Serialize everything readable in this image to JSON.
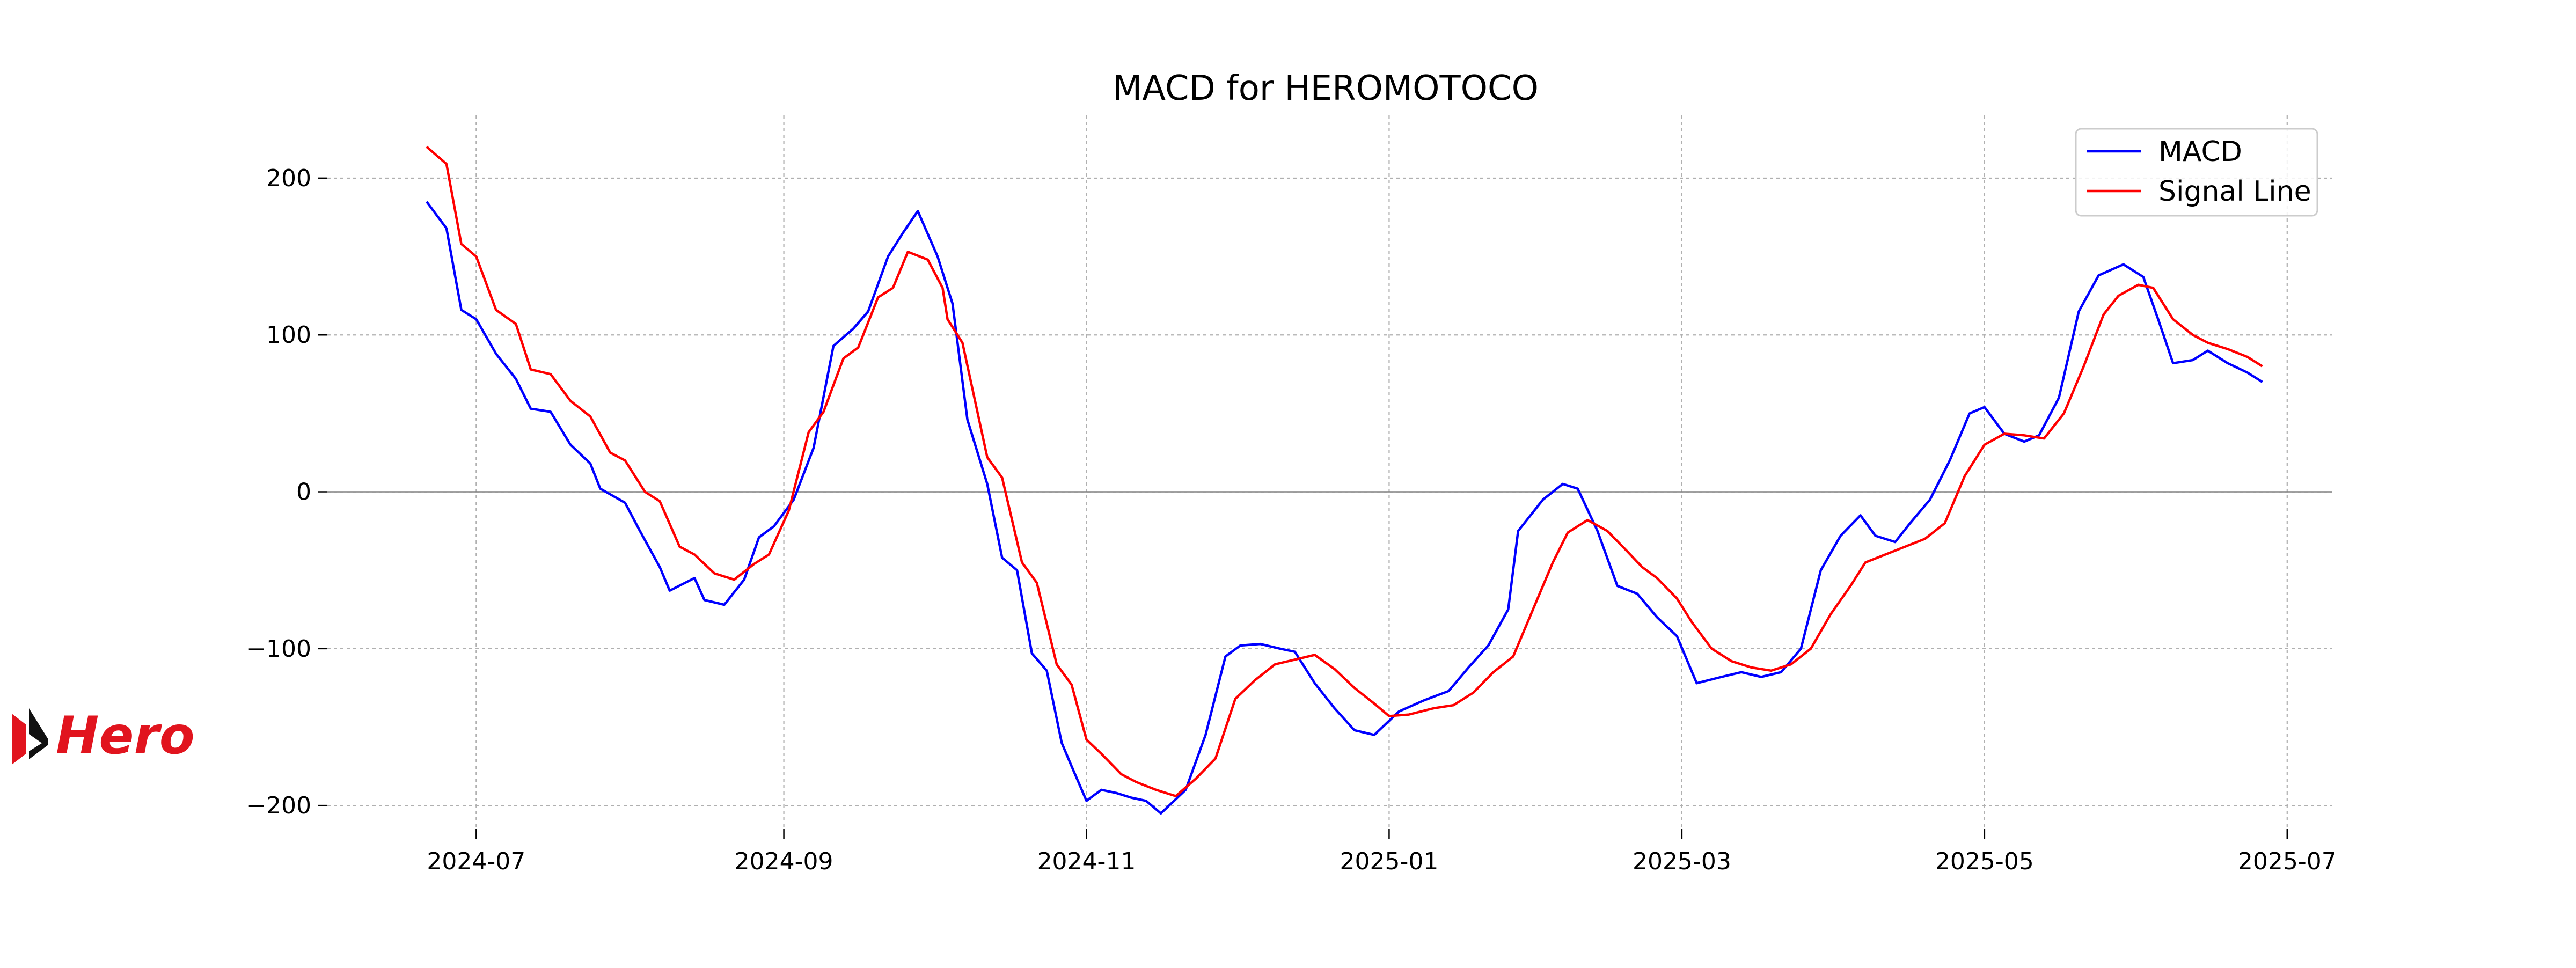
{
  "logo": {
    "text": "Hero",
    "color": "#e1141e"
  },
  "chart_data": {
    "type": "line",
    "title": "MACD for HEROMOTOCO",
    "xlabel": "",
    "ylabel": "",
    "x_axis_type": "date",
    "xlim": [
      "2024-06-01",
      "2025-07-10"
    ],
    "ylim": [
      -215,
      240
    ],
    "y_ticks": [
      200,
      100,
      0,
      -100,
      -200
    ],
    "y_tick_labels": [
      "200",
      "100",
      "0",
      "−100",
      "−200"
    ],
    "x_ticks": [
      "2024-07-01",
      "2024-09-01",
      "2024-11-01",
      "2025-01-01",
      "2025-03-01",
      "2025-05-01",
      "2025-07-01"
    ],
    "x_tick_labels": [
      "2024-07",
      "2024-09",
      "2024-11",
      "2025-01",
      "2025-03",
      "2025-05",
      "2025-07"
    ],
    "grid": true,
    "zero_line": true,
    "legend_position": "top-right",
    "series": [
      {
        "name": "MACD",
        "color": "#0000ff",
        "points": [
          [
            "2024-06-21",
            185
          ],
          [
            "2024-06-25",
            168
          ],
          [
            "2024-06-28",
            116
          ],
          [
            "2024-07-01",
            110
          ],
          [
            "2024-07-05",
            88
          ],
          [
            "2024-07-09",
            72
          ],
          [
            "2024-07-12",
            53
          ],
          [
            "2024-07-16",
            51
          ],
          [
            "2024-07-20",
            30
          ],
          [
            "2024-07-24",
            18
          ],
          [
            "2024-07-26",
            2
          ],
          [
            "2024-07-31",
            -7
          ],
          [
            "2024-08-03",
            -25
          ],
          [
            "2024-08-07",
            -48
          ],
          [
            "2024-08-09",
            -63
          ],
          [
            "2024-08-14",
            -55
          ],
          [
            "2024-08-16",
            -69
          ],
          [
            "2024-08-20",
            -72
          ],
          [
            "2024-08-24",
            -56
          ],
          [
            "2024-08-27",
            -29
          ],
          [
            "2024-08-30",
            -22
          ],
          [
            "2024-09-03",
            -5
          ],
          [
            "2024-09-07",
            28
          ],
          [
            "2024-09-11",
            93
          ],
          [
            "2024-09-15",
            104
          ],
          [
            "2024-09-18",
            115
          ],
          [
            "2024-09-22",
            150
          ],
          [
            "2024-09-25",
            165
          ],
          [
            "2024-09-28",
            179
          ],
          [
            "2024-10-02",
            150
          ],
          [
            "2024-10-05",
            120
          ],
          [
            "2024-10-08",
            46
          ],
          [
            "2024-10-12",
            5
          ],
          [
            "2024-10-15",
            -42
          ],
          [
            "2024-10-18",
            -50
          ],
          [
            "2024-10-21",
            -103
          ],
          [
            "2024-10-24",
            -114
          ],
          [
            "2024-10-27",
            -160
          ],
          [
            "2024-10-29",
            -175
          ],
          [
            "2024-11-01",
            -197
          ],
          [
            "2024-11-04",
            -190
          ],
          [
            "2024-11-07",
            -192
          ],
          [
            "2024-11-10",
            -195
          ],
          [
            "2024-11-13",
            -197
          ],
          [
            "2024-11-16",
            -205
          ],
          [
            "2024-11-21",
            -190
          ],
          [
            "2024-11-25",
            -155
          ],
          [
            "2024-11-29",
            -105
          ],
          [
            "2024-12-02",
            -98
          ],
          [
            "2024-12-06",
            -97
          ],
          [
            "2024-12-10",
            -100
          ],
          [
            "2024-12-13",
            -102
          ],
          [
            "2024-12-17",
            -122
          ],
          [
            "2024-12-21",
            -138
          ],
          [
            "2024-12-25",
            -152
          ],
          [
            "2024-12-29",
            -155
          ],
          [
            "2025-01-03",
            -140
          ],
          [
            "2025-01-08",
            -133
          ],
          [
            "2025-01-13",
            -127
          ],
          [
            "2025-01-17",
            -112
          ],
          [
            "2025-01-21",
            -98
          ],
          [
            "2025-01-25",
            -75
          ],
          [
            "2025-01-27",
            -25
          ],
          [
            "2025-02-01",
            -5
          ],
          [
            "2025-02-05",
            5
          ],
          [
            "2025-02-08",
            2
          ],
          [
            "2025-02-12",
            -25
          ],
          [
            "2025-02-16",
            -60
          ],
          [
            "2025-02-20",
            -65
          ],
          [
            "2025-02-24",
            -80
          ],
          [
            "2025-02-28",
            -92
          ],
          [
            "2025-03-04",
            -122
          ],
          [
            "2025-03-09",
            -118
          ],
          [
            "2025-03-13",
            -115
          ],
          [
            "2025-03-17",
            -118
          ],
          [
            "2025-03-21",
            -115
          ],
          [
            "2025-03-25",
            -100
          ],
          [
            "2025-03-29",
            -50
          ],
          [
            "2025-04-02",
            -28
          ],
          [
            "2025-04-06",
            -15
          ],
          [
            "2025-04-09",
            -28
          ],
          [
            "2025-04-13",
            -32
          ],
          [
            "2025-04-16",
            -20
          ],
          [
            "2025-04-20",
            -5
          ],
          [
            "2025-04-24",
            20
          ],
          [
            "2025-04-28",
            50
          ],
          [
            "2025-05-01",
            54
          ],
          [
            "2025-05-05",
            37
          ],
          [
            "2025-05-09",
            32
          ],
          [
            "2025-05-12",
            36
          ],
          [
            "2025-05-16",
            60
          ],
          [
            "2025-05-20",
            115
          ],
          [
            "2025-05-24",
            138
          ],
          [
            "2025-05-29",
            145
          ],
          [
            "2025-06-02",
            137
          ],
          [
            "2025-06-05",
            110
          ],
          [
            "2025-06-08",
            82
          ],
          [
            "2025-06-12",
            84
          ],
          [
            "2025-06-15",
            90
          ],
          [
            "2025-06-19",
            82
          ],
          [
            "2025-06-23",
            76
          ],
          [
            "2025-06-26",
            70
          ]
        ]
      },
      {
        "name": "Signal Line",
        "color": "#ff0000",
        "points": [
          [
            "2024-06-21",
            220
          ],
          [
            "2024-06-25",
            209
          ],
          [
            "2024-06-28",
            158
          ],
          [
            "2024-07-01",
            150
          ],
          [
            "2024-07-05",
            116
          ],
          [
            "2024-07-09",
            107
          ],
          [
            "2024-07-12",
            78
          ],
          [
            "2024-07-16",
            75
          ],
          [
            "2024-07-20",
            58
          ],
          [
            "2024-07-24",
            48
          ],
          [
            "2024-07-28",
            25
          ],
          [
            "2024-07-31",
            20
          ],
          [
            "2024-08-04",
            0
          ],
          [
            "2024-08-07",
            -6
          ],
          [
            "2024-08-11",
            -35
          ],
          [
            "2024-08-14",
            -40
          ],
          [
            "2024-08-18",
            -52
          ],
          [
            "2024-08-22",
            -56
          ],
          [
            "2024-08-26",
            -46
          ],
          [
            "2024-08-29",
            -40
          ],
          [
            "2024-09-02",
            -12
          ],
          [
            "2024-09-06",
            38
          ],
          [
            "2024-09-09",
            51
          ],
          [
            "2024-09-13",
            85
          ],
          [
            "2024-09-16",
            92
          ],
          [
            "2024-09-20",
            124
          ],
          [
            "2024-09-23",
            130
          ],
          [
            "2024-09-26",
            153
          ],
          [
            "2024-09-30",
            148
          ],
          [
            "2024-10-03",
            130
          ],
          [
            "2024-10-04",
            110
          ],
          [
            "2024-10-07",
            95
          ],
          [
            "2024-10-12",
            22
          ],
          [
            "2024-10-15",
            9
          ],
          [
            "2024-10-19",
            -45
          ],
          [
            "2024-10-22",
            -58
          ],
          [
            "2024-10-26",
            -110
          ],
          [
            "2024-10-29",
            -123
          ],
          [
            "2024-11-01",
            -158
          ],
          [
            "2024-11-04",
            -167
          ],
          [
            "2024-11-08",
            -180
          ],
          [
            "2024-11-11",
            -185
          ],
          [
            "2024-11-15",
            -190
          ],
          [
            "2024-11-19",
            -194
          ],
          [
            "2024-11-23",
            -183
          ],
          [
            "2024-11-27",
            -170
          ],
          [
            "2024-12-01",
            -132
          ],
          [
            "2024-12-05",
            -120
          ],
          [
            "2024-12-09",
            -110
          ],
          [
            "2024-12-13",
            -107
          ],
          [
            "2024-12-17",
            -104
          ],
          [
            "2024-12-21",
            -113
          ],
          [
            "2024-12-25",
            -125
          ],
          [
            "2024-12-29",
            -135
          ],
          [
            "2025-01-01",
            -143
          ],
          [
            "2025-01-05",
            -142
          ],
          [
            "2025-01-10",
            -138
          ],
          [
            "2025-01-14",
            -136
          ],
          [
            "2025-01-18",
            -128
          ],
          [
            "2025-01-22",
            -115
          ],
          [
            "2025-01-26",
            -105
          ],
          [
            "2025-01-30",
            -75
          ],
          [
            "2025-02-03",
            -45
          ],
          [
            "2025-02-06",
            -26
          ],
          [
            "2025-02-10",
            -18
          ],
          [
            "2025-02-14",
            -25
          ],
          [
            "2025-02-18",
            -38
          ],
          [
            "2025-02-21",
            -48
          ],
          [
            "2025-02-24",
            -55
          ],
          [
            "2025-02-28",
            -68
          ],
          [
            "2025-03-03",
            -83
          ],
          [
            "2025-03-07",
            -100
          ],
          [
            "2025-03-11",
            -108
          ],
          [
            "2025-03-15",
            -112
          ],
          [
            "2025-03-19",
            -114
          ],
          [
            "2025-03-23",
            -110
          ],
          [
            "2025-03-27",
            -100
          ],
          [
            "2025-03-31",
            -78
          ],
          [
            "2025-04-04",
            -60
          ],
          [
            "2025-04-07",
            -45
          ],
          [
            "2025-04-11",
            -40
          ],
          [
            "2025-04-15",
            -35
          ],
          [
            "2025-04-19",
            -30
          ],
          [
            "2025-04-23",
            -20
          ],
          [
            "2025-04-27",
            10
          ],
          [
            "2025-05-01",
            30
          ],
          [
            "2025-05-05",
            37
          ],
          [
            "2025-05-09",
            36
          ],
          [
            "2025-05-13",
            34
          ],
          [
            "2025-05-17",
            50
          ],
          [
            "2025-05-21",
            80
          ],
          [
            "2025-05-25",
            113
          ],
          [
            "2025-05-28",
            125
          ],
          [
            "2025-06-01",
            132
          ],
          [
            "2025-06-04",
            130
          ],
          [
            "2025-06-08",
            110
          ],
          [
            "2025-06-12",
            100
          ],
          [
            "2025-06-15",
            95
          ],
          [
            "2025-06-19",
            91
          ],
          [
            "2025-06-23",
            86
          ],
          [
            "2025-06-26",
            80
          ]
        ]
      }
    ]
  }
}
